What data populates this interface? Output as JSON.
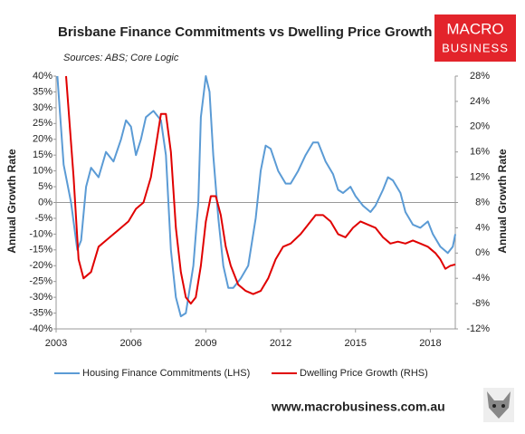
{
  "chart_data": {
    "type": "line",
    "title": "Brisbane Finance Commitments vs Dwelling Price Growth",
    "subtitle": "Sources: ABS; Core Logic",
    "y_label": "Annual Growth Rate",
    "y2_label": "Annual Growth Rate",
    "logo": [
      "MACRO",
      "BUSINESS"
    ],
    "footer": "www.macrobusiness.com.au",
    "xlim": [
      2003,
      2019
    ],
    "xticks": [
      2003,
      2006,
      2009,
      2012,
      2015,
      2018
    ],
    "ylim": [
      -40,
      40
    ],
    "yticks": [
      {
        "value": 40,
        "label": "40%"
      },
      {
        "value": 35,
        "label": "35%"
      },
      {
        "value": 30,
        "label": "30%"
      },
      {
        "value": 25,
        "label": "25%"
      },
      {
        "value": 20,
        "label": "20%"
      },
      {
        "value": 15,
        "label": "15%"
      },
      {
        "value": 10,
        "label": "10%"
      },
      {
        "value": 5,
        "label": "5%"
      },
      {
        "value": 0,
        "label": "0%"
      },
      {
        "value": -5,
        "label": "-5%"
      },
      {
        "value": -10,
        "label": "-10%"
      },
      {
        "value": -15,
        "label": "-15%"
      },
      {
        "value": -20,
        "label": "-20%"
      },
      {
        "value": -25,
        "label": "-25%"
      },
      {
        "value": -30,
        "label": "-30%"
      },
      {
        "value": -35,
        "label": "-35%"
      },
      {
        "value": -40,
        "label": "-40%"
      }
    ],
    "y2lim": [
      -12,
      28
    ],
    "y2ticks": [
      {
        "value": 28,
        "label": "28%"
      },
      {
        "value": 24,
        "label": "24%"
      },
      {
        "value": 20,
        "label": "20%"
      },
      {
        "value": 16,
        "label": "16%"
      },
      {
        "value": 12,
        "label": "12%"
      },
      {
        "value": 8,
        "label": "8%"
      },
      {
        "value": 4,
        "label": "4%"
      },
      {
        "value": 0,
        "label": "0%"
      },
      {
        "value": -4,
        "label": "-4%"
      },
      {
        "value": -8,
        "label": "-8%"
      },
      {
        "value": -12,
        "label": "-12%"
      }
    ],
    "series": [
      {
        "name": "Housing Finance Commitments (LHS)",
        "color": "#5b9bd5",
        "axis": "y",
        "x": [
          2003.05,
          2003.3,
          2003.6,
          2003.85,
          2004.0,
          2004.2,
          2004.4,
          2004.7,
          2005.0,
          2005.3,
          2005.6,
          2005.8,
          2006.0,
          2006.2,
          2006.4,
          2006.6,
          2006.9,
          2007.2,
          2007.4,
          2007.6,
          2007.8,
          2008.0,
          2008.2,
          2008.5,
          2008.7,
          2008.8,
          2009.0,
          2009.15,
          2009.3,
          2009.5,
          2009.7,
          2009.9,
          2010.1,
          2010.4,
          2010.7,
          2011.0,
          2011.2,
          2011.4,
          2011.6,
          2011.9,
          2012.2,
          2012.4,
          2012.7,
          2013.0,
          2013.3,
          2013.5,
          2013.8,
          2014.1,
          2014.3,
          2014.5,
          2014.8,
          2015.0,
          2015.3,
          2015.6,
          2015.8,
          2016.1,
          2016.3,
          2016.5,
          2016.8,
          2017.0,
          2017.3,
          2017.6,
          2017.9,
          2018.1,
          2018.4,
          2018.7,
          2018.9,
          2019.0
        ],
        "values": [
          40,
          12,
          0,
          -15,
          -12,
          5,
          11,
          8,
          16,
          13,
          20,
          26,
          24,
          15,
          20,
          27,
          29,
          26,
          15,
          -15,
          -30,
          -36,
          -35,
          -20,
          0,
          27,
          40,
          35,
          15,
          -5,
          -20,
          -27,
          -27,
          -24,
          -20,
          -5,
          10,
          18,
          17,
          10,
          6,
          6,
          10,
          15,
          19,
          19,
          13,
          9,
          4,
          3,
          5,
          2,
          -1,
          -3,
          -1,
          4,
          8,
          7,
          3,
          -3,
          -7,
          -8,
          -6,
          -10,
          -14,
          -16,
          -14,
          -10
        ]
      },
      {
        "name": "Dwelling Price Growth (RHS)",
        "color": "#e00000",
        "axis": "y2",
        "x": [
          2003.4,
          2003.7,
          2003.9,
          2004.1,
          2004.4,
          2004.7,
          2005.0,
          2005.3,
          2005.6,
          2005.9,
          2006.2,
          2006.5,
          2006.8,
          2007.0,
          2007.2,
          2007.4,
          2007.6,
          2007.8,
          2008.0,
          2008.2,
          2008.4,
          2008.6,
          2008.8,
          2009.0,
          2009.2,
          2009.4,
          2009.6,
          2009.8,
          2010.0,
          2010.3,
          2010.6,
          2010.9,
          2011.2,
          2011.5,
          2011.8,
          2012.1,
          2012.4,
          2012.8,
          2013.1,
          2013.4,
          2013.7,
          2014.0,
          2014.3,
          2014.6,
          2014.9,
          2015.2,
          2015.5,
          2015.8,
          2016.1,
          2016.4,
          2016.7,
          2017.0,
          2017.3,
          2017.6,
          2017.9,
          2018.2,
          2018.4,
          2018.6,
          2018.8,
          2019.0
        ],
        "values": [
          28,
          12,
          -1,
          -4,
          -3,
          1,
          2,
          3,
          4,
          5,
          7,
          8,
          12,
          17,
          22,
          22,
          16,
          4,
          -3,
          -7,
          -8,
          -7,
          -2,
          5,
          9,
          9,
          6,
          1,
          -2,
          -5,
          -6,
          -6.5,
          -6,
          -4,
          -1,
          1,
          1.5,
          3,
          4.5,
          6,
          6,
          5,
          3,
          2.5,
          4,
          5,
          4.5,
          4,
          2.5,
          1.5,
          1.8,
          1.5,
          2,
          1.5,
          1,
          0,
          -1,
          -2.5,
          -2,
          -1.8
        ]
      }
    ]
  }
}
